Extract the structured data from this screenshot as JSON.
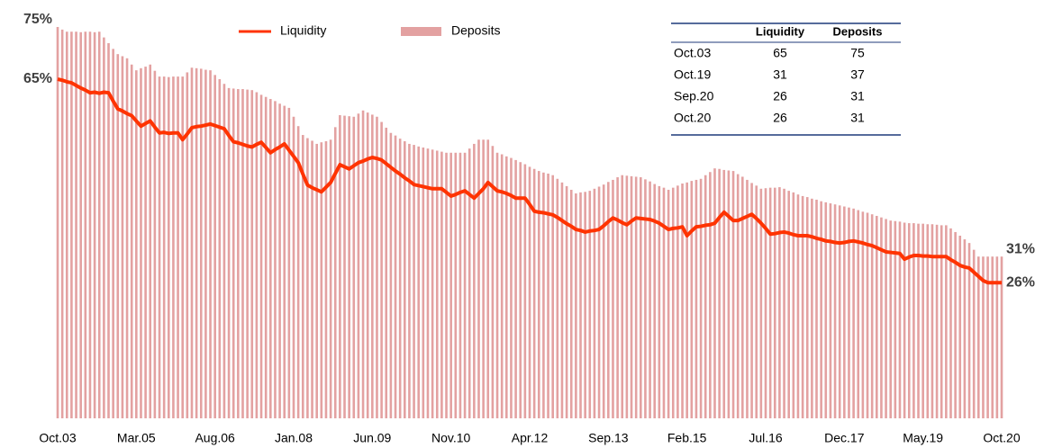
{
  "chart_data": {
    "type": "bar_line",
    "categories": [
      "Oct.03",
      null,
      null,
      null,
      null,
      null,
      null,
      null,
      null,
      null,
      null,
      null,
      null,
      null,
      null,
      null,
      null,
      "Mar.05",
      null,
      null,
      null,
      null,
      null,
      null,
      null,
      null,
      null,
      null,
      null,
      null,
      null,
      null,
      null,
      null,
      "Aug.06",
      null,
      null,
      null,
      null,
      null,
      null,
      null,
      null,
      null,
      null,
      null,
      null,
      null,
      null,
      null,
      null,
      "Jan.08",
      null,
      null,
      null,
      null,
      null,
      null,
      null,
      null,
      null,
      null,
      null,
      null,
      null,
      null,
      null,
      null,
      "Jun.09",
      null,
      null,
      null,
      null,
      null,
      null,
      null,
      null,
      null,
      null,
      null,
      null,
      null,
      null,
      null,
      null,
      "Nov.10",
      null,
      null,
      null,
      null,
      null,
      null,
      null,
      null,
      null,
      null,
      null,
      null,
      null,
      null,
      null,
      null,
      "Apr.12",
      null,
      null,
      null,
      null,
      null,
      null,
      null,
      null,
      null,
      null,
      null,
      null,
      null,
      null,
      null,
      null,
      "Sep.13",
      null,
      null,
      null,
      null,
      null,
      null,
      null,
      null,
      null,
      null,
      null,
      null,
      null,
      null,
      null,
      null,
      "Feb.15",
      null,
      null,
      null,
      null,
      null,
      null,
      null,
      null,
      null,
      null,
      null,
      null,
      null,
      null,
      null,
      null,
      "Jul.16",
      null,
      null,
      null,
      null,
      null,
      null,
      null,
      null,
      null,
      null,
      null,
      null,
      null,
      null,
      null,
      null,
      "Dec.17",
      null,
      null,
      null,
      null,
      null,
      null,
      null,
      null,
      null,
      null,
      null,
      null,
      null,
      null,
      null,
      null,
      "May.19",
      null,
      null,
      null,
      null,
      null,
      null,
      null,
      null,
      null,
      null,
      null,
      null,
      null,
      null,
      null,
      null,
      "Oct.20"
    ],
    "series": [
      {
        "name": "Liquidity",
        "kind": "line",
        "color": "#ff3300",
        "value_labels": {
          "0": "65%",
          "204": "26%"
        },
        "values": [
          65,
          64.8,
          64.5,
          64.3,
          63.8,
          63.3,
          62.9,
          62.4,
          62.5,
          62.3,
          62.5,
          62.4,
          60.8,
          59.3,
          58.9,
          58.4,
          58,
          57,
          56,
          56.5,
          57,
          55.8,
          54.7,
          54.8,
          54.6,
          54.7,
          54.7,
          53.4,
          54.5,
          55.7,
          55.9,
          56,
          56.2,
          56.4,
          56.1,
          55.8,
          55.5,
          54.2,
          53,
          52.8,
          52.5,
          52.2,
          52,
          52.5,
          52.9,
          51.9,
          50.9,
          51.5,
          52,
          52.6,
          51.4,
          50.2,
          49,
          46.8,
          44.7,
          44.2,
          43.8,
          43.4,
          44.3,
          45.2,
          46.9,
          48.6,
          48.2,
          47.8,
          48.4,
          49,
          49.3,
          49.7,
          50,
          49.8,
          49.5,
          48.8,
          48.1,
          47.4,
          46.8,
          46.1,
          45.5,
          44.8,
          44.6,
          44.4,
          44.2,
          44,
          44,
          44,
          43.3,
          42.6,
          42.9,
          43.3,
          43.6,
          42.9,
          42.2,
          43.1,
          44,
          45.2,
          44.4,
          43.6,
          43.4,
          43.1,
          42.7,
          42.2,
          42.2,
          42.2,
          41,
          39.7,
          39.5,
          39.4,
          39.2,
          39,
          38.5,
          37.9,
          37.3,
          36.8,
          36.2,
          36,
          35.7,
          35.9,
          36,
          36.2,
          36.9,
          37.7,
          38.4,
          38,
          37.5,
          37.1,
          37.8,
          38.4,
          38.3,
          38.2,
          38.1,
          37.8,
          37.4,
          36.8,
          36.2,
          36.4,
          36.5,
          36.7,
          35,
          35.9,
          36.7,
          36.8,
          37,
          37.1,
          37.4,
          38.5,
          39.5,
          38.7,
          37.9,
          37.9,
          38.3,
          38.7,
          39.1,
          38.3,
          37.4,
          36.4,
          35.3,
          35.4,
          35.6,
          35.7,
          35.5,
          35.2,
          35,
          35,
          35,
          34.8,
          34.5,
          34.3,
          34,
          33.9,
          33.7,
          33.6,
          33.7,
          33.9,
          34,
          33.8,
          33.6,
          33.3,
          33.1,
          32.7,
          32.3,
          31.9,
          31.8,
          31.7,
          31.6,
          30.5,
          30.9,
          31.2,
          31.2,
          31.1,
          31.1,
          31,
          31,
          31,
          31,
          30.4,
          29.9,
          29.3,
          29,
          28.8,
          28,
          27.2,
          26.4,
          26,
          26,
          26,
          26
        ]
      },
      {
        "name": "Deposits",
        "kind": "bar",
        "color": "#e3a1a1",
        "value_labels": {
          "0": "75%",
          "204": "31%"
        },
        "values": [
          75,
          74.5,
          74.1,
          74.1,
          74.1,
          74,
          74.1,
          74.1,
          74,
          74.1,
          73,
          71.9,
          70.8,
          69.8,
          69.4,
          69,
          67.8,
          66.7,
          67.1,
          67.4,
          67.8,
          66.6,
          65.5,
          65.5,
          65.4,
          65.5,
          65.5,
          65.5,
          66.3,
          67.2,
          67.1,
          67,
          66.8,
          66.7,
          65.8,
          65,
          64.1,
          63.3,
          63.2,
          63.1,
          63.1,
          63,
          62.9,
          62.5,
          62,
          61.6,
          61.2,
          60.8,
          60.3,
          59.9,
          59.5,
          57.8,
          56,
          54.3,
          53.7,
          53.2,
          52.6,
          52.9,
          53.1,
          53.4,
          55.8,
          58.1,
          58,
          57.9,
          57.8,
          58.4,
          59,
          58.6,
          58.2,
          57.8,
          56.8,
          55.7,
          54.7,
          54.2,
          53.6,
          53.1,
          52.6,
          52.4,
          52.1,
          51.9,
          51.7,
          51.5,
          51.3,
          51.1,
          50.9,
          50.9,
          50.9,
          50.9,
          50.9,
          51.7,
          52.6,
          53.4,
          53.4,
          53.4,
          52.2,
          50.9,
          50.6,
          50.2,
          49.9,
          49.5,
          49.1,
          48.7,
          48.2,
          47.8,
          47.4,
          47.1,
          46.9,
          46.6,
          45.9,
          45.2,
          44.5,
          43.8,
          43.1,
          43.3,
          43.4,
          43.6,
          44,
          44.4,
          44.8,
          45.3,
          45.7,
          46.2,
          46.6,
          46.5,
          46.4,
          46.3,
          46.2,
          45.8,
          45.4,
          44.9,
          44.5,
          44.2,
          43.8,
          44.2,
          44.6,
          45,
          45.2,
          45.5,
          45.7,
          45.9,
          46.6,
          47.2,
          47.9,
          47.8,
          47.6,
          47.5,
          47.4,
          46.8,
          46.3,
          45.7,
          45.1,
          44.6,
          44,
          44.1,
          44.2,
          44.2,
          44.3,
          44,
          43.6,
          43.3,
          42.9,
          42.6,
          42.4,
          42.1,
          41.9,
          41.6,
          41.4,
          41.2,
          41,
          40.8,
          40.6,
          40.4,
          40.2,
          39.9,
          39.6,
          39.4,
          39.1,
          38.8,
          38.5,
          38.2,
          37.9,
          37.8,
          37.7,
          37.5,
          37.4,
          37.4,
          37.3,
          37.3,
          37.2,
          37.2,
          37.1,
          37,
          37,
          36.4,
          35.7,
          35,
          34.3,
          33.6,
          32.3,
          31,
          31,
          31,
          31,
          31,
          31
        ]
      }
    ],
    "ylim": [
      0,
      75
    ],
    "grid": false
  },
  "table": {
    "columns": [
      "Liquidity",
      "Deposits"
    ],
    "rows": [
      [
        "Oct.03",
        "65",
        "75"
      ],
      [
        "Oct.19",
        "31",
        "37"
      ],
      [
        "Sep.20",
        "26",
        "31"
      ],
      [
        "Oct.20",
        "26",
        "31"
      ]
    ]
  }
}
